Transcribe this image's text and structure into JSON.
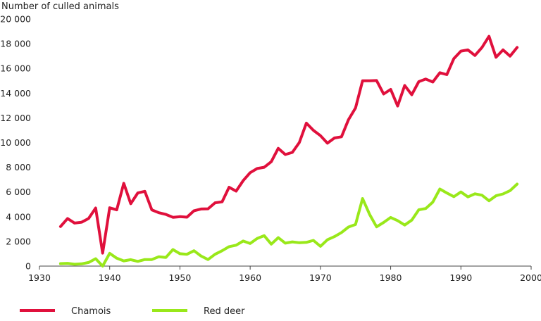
{
  "chart_data": {
    "type": "line",
    "title": "",
    "xlabel": "",
    "ylabel": "Number of culled animals",
    "xlim": [
      1930,
      2000
    ],
    "ylim": [
      0,
      20000
    ],
    "x_ticks": [
      1930,
      1940,
      1950,
      1960,
      1970,
      1980,
      1990,
      2000
    ],
    "y_ticks": [
      0,
      2000,
      4000,
      6000,
      8000,
      10000,
      12000,
      14000,
      16000,
      18000,
      20000
    ],
    "x_tick_labels": [
      "1930",
      "1940",
      "1950",
      "1960",
      "1970",
      "1980",
      "1990",
      "2000"
    ],
    "y_tick_labels": [
      "0",
      "2 000",
      "4 000",
      "6 000",
      "8 000",
      "10 000",
      "12 000",
      "14 000",
      "16 000",
      "18 000",
      "20 000"
    ],
    "grid": false,
    "legend_position": "bottom",
    "x": [
      1933,
      1934,
      1935,
      1936,
      1937,
      1938,
      1939,
      1940,
      1941,
      1942,
      1943,
      1944,
      1945,
      1946,
      1947,
      1948,
      1949,
      1950,
      1951,
      1952,
      1953,
      1954,
      1955,
      1956,
      1957,
      1958,
      1959,
      1960,
      1961,
      1962,
      1963,
      1964,
      1965,
      1966,
      1967,
      1968,
      1969,
      1970,
      1971,
      1972,
      1973,
      1974,
      1975,
      1976,
      1977,
      1978,
      1979,
      1980,
      1981,
      1982,
      1983,
      1984,
      1985,
      1986,
      1987,
      1988,
      1989,
      1990,
      1991,
      1992,
      1993,
      1994,
      1995,
      1996,
      1997,
      1998
    ],
    "series": [
      {
        "name": "Chamois",
        "color": "#e0103c",
        "values": [
          3200,
          3850,
          3480,
          3550,
          3850,
          4700,
          1050,
          4720,
          4550,
          6700,
          5050,
          5920,
          6050,
          4550,
          4320,
          4180,
          3950,
          4000,
          3960,
          4480,
          4620,
          4640,
          5120,
          5200,
          6380,
          6070,
          6920,
          7560,
          7900,
          8000,
          8450,
          9530,
          9030,
          9200,
          10000,
          11570,
          10990,
          10560,
          9950,
          10370,
          10470,
          11850,
          12800,
          15000,
          15000,
          15020,
          13930,
          14300,
          12960,
          14620,
          13870,
          14930,
          15140,
          14900,
          15650,
          15500,
          16800,
          17400,
          17500,
          17050,
          17700,
          18600,
          16900,
          17500,
          17000,
          17700
        ]
      },
      {
        "name": "Red deer",
        "color": "#99e81a",
        "values": [
          200,
          220,
          150,
          180,
          290,
          600,
          0,
          1030,
          640,
          420,
          520,
          380,
          530,
          530,
          760,
          700,
          1340,
          1000,
          960,
          1240,
          820,
          530,
          960,
          1240,
          1570,
          1690,
          2030,
          1830,
          2240,
          2460,
          1780,
          2300,
          1860,
          1960,
          1890,
          1920,
          2080,
          1600,
          2130,
          2390,
          2720,
          3160,
          3370,
          5470,
          4180,
          3180,
          3530,
          3940,
          3680,
          3320,
          3720,
          4560,
          4660,
          5180,
          6240,
          5920,
          5620,
          6000,
          5600,
          5850,
          5740,
          5290,
          5690,
          5840,
          6110,
          6640
        ]
      }
    ]
  }
}
